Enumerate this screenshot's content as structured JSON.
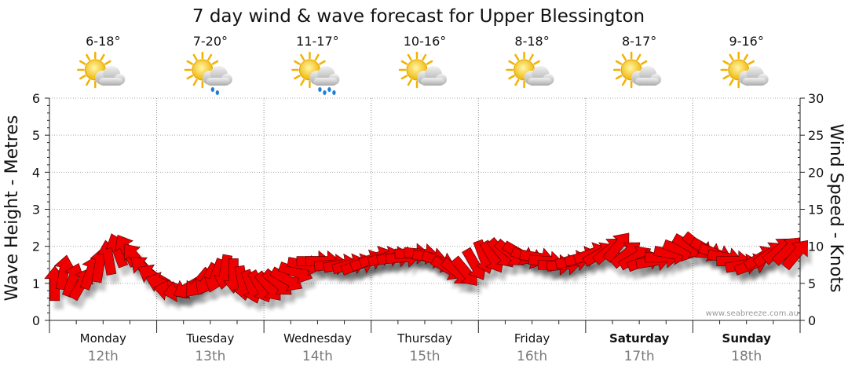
{
  "chart_data": {
    "type": "line",
    "title": "7 day wind & wave forecast for Upper Blessington",
    "ylabel": "Wave Height - Metres",
    "y2label": "Wind Speed - Knots",
    "ylim": [
      0,
      6
    ],
    "y2lim": [
      0,
      30
    ],
    "yticks": [
      "0",
      "1",
      "2",
      "3",
      "4",
      "5",
      "6"
    ],
    "y2ticks": [
      "0",
      "5",
      "10",
      "15",
      "20",
      "25",
      "30"
    ],
    "grid": true,
    "credit": "www.seabreeze.com.au",
    "days": [
      {
        "name": "Monday",
        "date": "12th",
        "temp": "6-18°",
        "icon": "partly-cloudy-icon",
        "bold": false
      },
      {
        "name": "Tuesday",
        "date": "13th",
        "temp": "7-20°",
        "icon": "showers-icon",
        "bold": false
      },
      {
        "name": "Wednesday",
        "date": "14th",
        "temp": "11-17°",
        "icon": "rain-icon",
        "bold": false
      },
      {
        "name": "Thursday",
        "date": "15th",
        "temp": "10-16°",
        "icon": "partly-cloudy-icon",
        "bold": false
      },
      {
        "name": "Friday",
        "date": "16th",
        "temp": "8-18°",
        "icon": "partly-cloudy-icon",
        "bold": false
      },
      {
        "name": "Saturday",
        "date": "17th",
        "temp": "8-17°",
        "icon": "partly-cloudy-icon",
        "bold": true
      },
      {
        "name": "Sunday",
        "date": "18th",
        "temp": "9-16°",
        "icon": "partly-cloudy-icon",
        "bold": true
      }
    ],
    "series": [
      {
        "name": "Wind Speed - Knots",
        "x_days": [
          0.0,
          0.083,
          0.167,
          0.25,
          0.333,
          0.417,
          0.5,
          0.583,
          0.667,
          0.75,
          0.833,
          0.917,
          1.0,
          1.083,
          1.167,
          1.25,
          1.333,
          1.417,
          1.5,
          1.583,
          1.667,
          1.75,
          1.833,
          1.917,
          2.0,
          2.083,
          2.167,
          2.25,
          2.333,
          2.417,
          2.5,
          2.583,
          2.667,
          2.75,
          2.833,
          2.917,
          3.0,
          3.083,
          3.167,
          3.25,
          3.333,
          3.417,
          3.5,
          3.583,
          3.667,
          3.75,
          3.833,
          3.917,
          4.0,
          4.083,
          4.167,
          4.25,
          4.333,
          4.417,
          4.5,
          4.583,
          4.667,
          4.75,
          4.833,
          4.917,
          5.0,
          5.083,
          5.167,
          5.25,
          5.333,
          5.417,
          5.5,
          5.583,
          5.667,
          5.75,
          5.833,
          5.917,
          6.0,
          6.083,
          6.167,
          6.25,
          6.333,
          6.417,
          6.5,
          6.583,
          6.667,
          6.75,
          6.833,
          6.917
        ],
        "values": [
          5.0,
          6.5,
          5.5,
          5.0,
          6.5,
          7.5,
          8.5,
          9.5,
          9.5,
          8.5,
          7.0,
          6.0,
          5.0,
          4.0,
          4.0,
          4.5,
          5.0,
          5.5,
          6.0,
          6.5,
          6.0,
          5.0,
          4.5,
          4.5,
          4.5,
          5.0,
          5.5,
          6.5,
          7.5,
          8.0,
          8.0,
          7.5,
          7.5,
          7.5,
          7.5,
          8.0,
          8.5,
          8.5,
          8.5,
          8.5,
          9.0,
          9.0,
          8.5,
          8.0,
          7.0,
          6.5,
          6.5,
          7.5,
          8.5,
          8.5,
          9.0,
          9.0,
          9.0,
          8.5,
          8.5,
          8.0,
          7.5,
          7.5,
          8.0,
          8.5,
          9.0,
          9.0,
          9.5,
          10.0,
          9.0,
          8.5,
          8.0,
          8.0,
          8.5,
          9.0,
          9.5,
          10.0,
          10.0,
          9.5,
          9.0,
          8.5,
          8.0,
          7.5,
          7.5,
          8.5,
          9.0,
          9.5,
          9.5,
          9.0
        ],
        "direction_deg": [
          0,
          10,
          20,
          30,
          20,
          10,
          350,
          340,
          330,
          320,
          310,
          300,
          290,
          280,
          260,
          240,
          220,
          210,
          200,
          190,
          180,
          170,
          160,
          150,
          140,
          130,
          120,
          110,
          100,
          90,
          90,
          85,
          80,
          75,
          70,
          70,
          70,
          75,
          80,
          85,
          90,
          95,
          100,
          110,
          120,
          130,
          140,
          150,
          160,
          150,
          140,
          130,
          120,
          110,
          100,
          95,
          90,
          85,
          80,
          75,
          70,
          60,
          50,
          40,
          50,
          60,
          70,
          80,
          90,
          100,
          110,
          120,
          130,
          120,
          110,
          100,
          90,
          80,
          70,
          60,
          55,
          50,
          45,
          40
        ]
      }
    ]
  }
}
